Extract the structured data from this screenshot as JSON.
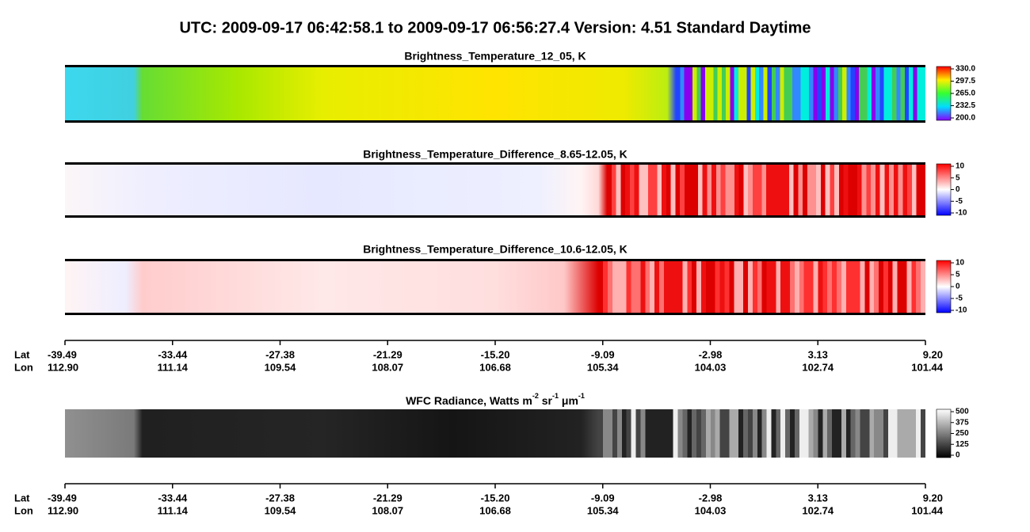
{
  "header": {
    "title": "UTC:  2009-09-17   06:42:58.1  to  2009-09-17   06:56:27.4    Version: 4.51  Standard Daytime"
  },
  "panels": [
    {
      "title": "Brightness_Temperature_12_05, K",
      "colorbar": [
        "330.0",
        "297.5",
        "265.0",
        "232.5",
        "200.0"
      ]
    },
    {
      "title": "Brightness_Temperature_Difference_8.65-12.05, K",
      "colorbar": [
        "10",
        "5",
        "0",
        "-5",
        "-10"
      ]
    },
    {
      "title": "Brightness_Temperature_Difference_10.6-12.05, K",
      "colorbar": [
        "10",
        "5",
        "0",
        "-5",
        "-10"
      ]
    }
  ],
  "wfc": {
    "title": {
      "text": "WFC Radiance, Watts m",
      "sup1": "-2",
      "mid1": " sr",
      "sup2": "-1",
      "mid2": " μm",
      "sup3": "-1"
    },
    "colorbar": [
      "500",
      "375",
      "250",
      "125",
      "0"
    ]
  },
  "axes": [
    {
      "lat_label": "Lat",
      "lon_label": "Lon",
      "lat": [
        "-39.49",
        "-33.44",
        "-27.38",
        "-21.29",
        "-15.20",
        "-9.09",
        "-2.98",
        "3.13",
        "9.20"
      ],
      "lon": [
        "112.90",
        "111.14",
        "109.54",
        "108.07",
        "106.68",
        "105.34",
        "104.03",
        "102.74",
        "101.44"
      ]
    },
    {
      "lat_label": "Lat",
      "lon_label": "Lon",
      "lat": [
        "-39.49",
        "-33.44",
        "-27.38",
        "-21.29",
        "-15.20",
        "-9.09",
        "-2.98",
        "3.13",
        "9.20"
      ],
      "lon": [
        "112.90",
        "111.14",
        "109.54",
        "108.07",
        "106.68",
        "105.34",
        "104.03",
        "102.74",
        "101.44"
      ]
    }
  ]
}
